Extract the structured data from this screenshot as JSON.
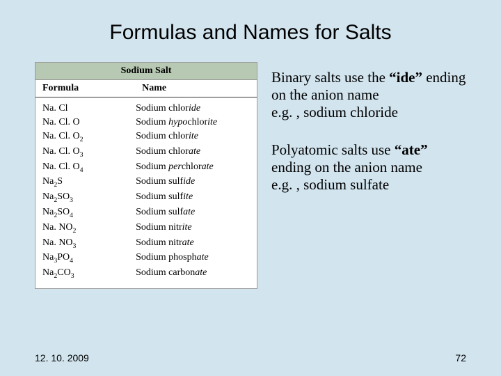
{
  "title": "Formulas and Names for Salts",
  "table": {
    "superheader": "Sodium Salt",
    "columns": [
      "Formula",
      "Name"
    ],
    "rows": [
      {
        "formula_html": "Na. Cl",
        "name_html": "Sodium chlor<i>ide</i>"
      },
      {
        "formula_html": "Na. Cl. O",
        "name_html": "Sodium <i>hypo</i>chlor<i>ite</i>"
      },
      {
        "formula_html": "Na. Cl. O<sub>2</sub>",
        "name_html": "Sodium chlor<i>ite</i>"
      },
      {
        "formula_html": "Na. Cl. O<sub>3</sub>",
        "name_html": "Sodium chlor<i>ate</i>"
      },
      {
        "formula_html": "Na. Cl. O<sub>4</sub>",
        "name_html": "Sodium <i>per</i>chlor<i>ate</i>"
      },
      {
        "formula_html": "Na<sub>2</sub>S",
        "name_html": "Sodium sulf<i>ide</i>"
      },
      {
        "formula_html": "Na<sub>2</sub>SO<sub>3</sub>",
        "name_html": "Sodium sulf<i>ite</i>"
      },
      {
        "formula_html": "Na<sub>2</sub>SO<sub>4</sub>",
        "name_html": "Sodium sulf<i>ate</i>"
      },
      {
        "formula_html": "Na. NO<sub>2</sub>",
        "name_html": "Sodium nitr<i>ite</i>"
      },
      {
        "formula_html": "Na. NO<sub>3</sub>",
        "name_html": "Sodium nitr<i>ate</i>"
      },
      {
        "formula_html": "Na<sub>3</sub>PO<sub>4</sub>",
        "name_html": "Sodium phosph<i>ate</i>"
      },
      {
        "formula_html": "Na<sub>2</sub>CO<sub>3</sub>",
        "name_html": "Sodium carbon<i>ate</i>"
      }
    ],
    "colors": {
      "header_bg": "#b8c9b3",
      "border": "#999999",
      "bg": "#ffffff"
    }
  },
  "text": {
    "para1_pre": "Binary salts use the ",
    "para1_bold": "“ide”",
    "para1_post": " ending on the anion name",
    "para1_eg": "e.g. , sodium chloride",
    "para2_pre": "Polyatomic salts use ",
    "para2_bold": "“ate”",
    "para2_post": " ending on the anion name",
    "para2_eg": "e.g. , sodium sulfate"
  },
  "footer": {
    "date": "12. 10. 2009",
    "page": "72"
  },
  "colors": {
    "slide_bg": "#d2e4ee"
  }
}
